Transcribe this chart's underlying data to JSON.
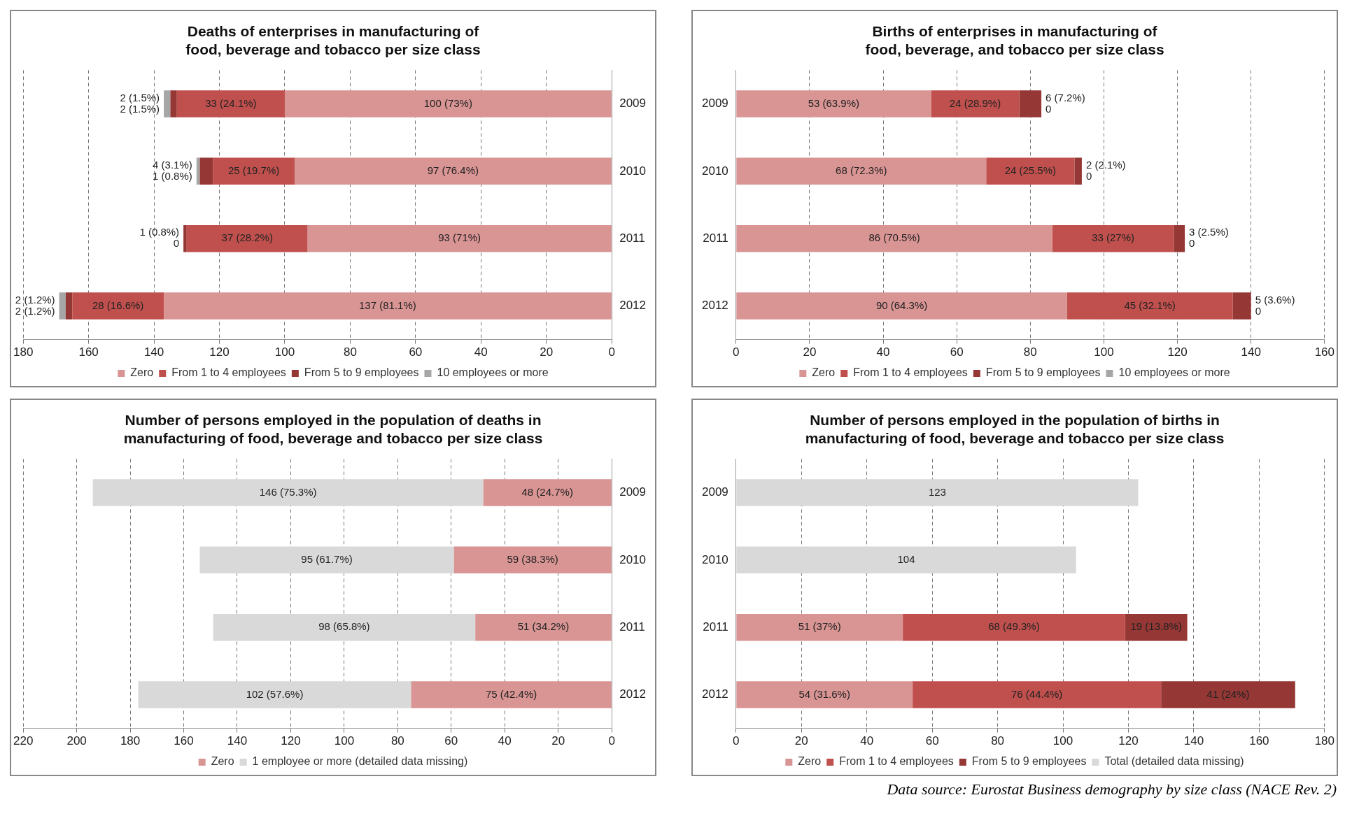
{
  "chart_data": [
    {
      "type": "bar",
      "orientation": "horizontal",
      "stacked": true,
      "title": "Deaths of enterprises in manufacturing of food, beverage and tobacco per size class",
      "categories": [
        "2009",
        "2010",
        "2011",
        "2012"
      ],
      "xlim": [
        180,
        0
      ],
      "xticks": [
        180,
        160,
        140,
        120,
        100,
        80,
        60,
        40,
        20,
        0
      ],
      "grid": "x",
      "legend": "bottom",
      "series": [
        {
          "name": "Zero",
          "color": "#d99594",
          "values": [
            100,
            97,
            93,
            137
          ],
          "value_labels": [
            "100 (73%)",
            "97 (76.4%)",
            "93 (71%)",
            "137 (81.1%)"
          ]
        },
        {
          "name": "From 1 to 4 employees",
          "color": "#c0504d",
          "values": [
            33,
            25,
            37,
            28
          ],
          "value_labels": [
            "33 (24.1%)",
            "25 (19.7%)",
            "37 (28.2%)",
            "28 (16.6%)"
          ]
        },
        {
          "name": "From 5 to 9 employees",
          "color": "#953735",
          "values": [
            2,
            4,
            1,
            2
          ],
          "value_labels": [
            "2 (1.5%)",
            "4 (3.1%)",
            "1 (0.8%)",
            "2 (1.2%)"
          ]
        },
        {
          "name": "10 employees or more",
          "color": "#a6a6a6",
          "values": [
            2,
            1,
            0,
            2
          ],
          "value_labels": [
            "2 (1.5%)",
            "1 (0.8%)",
            "0",
            "2 (1.2%)"
          ]
        }
      ]
    },
    {
      "type": "bar",
      "orientation": "horizontal",
      "stacked": true,
      "title": "Births of enterprises in manufacturing of food, beverage, and tobacco per size class",
      "categories": [
        "2009",
        "2010",
        "2011",
        "2012"
      ],
      "xlim": [
        0,
        160
      ],
      "xticks": [
        0,
        20,
        40,
        60,
        80,
        100,
        120,
        140,
        160
      ],
      "grid": "x",
      "legend": "bottom",
      "series": [
        {
          "name": "Zero",
          "color": "#d99594",
          "values": [
            53,
            68,
            86,
            90
          ],
          "value_labels": [
            "53 (63.9%)",
            "68 (72.3%)",
            "86 (70.5%)",
            "90 (64.3%)"
          ]
        },
        {
          "name": "From 1 to 4 employees",
          "color": "#c0504d",
          "values": [
            24,
            24,
            33,
            45
          ],
          "value_labels": [
            "24 (28.9%)",
            "24 (25.5%)",
            "33 (27%)",
            "45 (32.1%)"
          ]
        },
        {
          "name": "From 5 to 9 employees",
          "color": "#953735",
          "values": [
            6,
            2,
            3,
            5
          ],
          "value_labels": [
            "6 (7.2%)",
            "2 (2.1%)",
            "3 (2.5%)",
            "5 (3.6%)"
          ]
        },
        {
          "name": "10 employees or more",
          "color": "#a6a6a6",
          "values": [
            0,
            0,
            0,
            0
          ],
          "value_labels": [
            "0",
            "0",
            "0",
            "0"
          ]
        }
      ]
    },
    {
      "type": "bar",
      "orientation": "horizontal",
      "stacked": true,
      "title": "Number of persons employed in the population of deaths in manufacturing of food, beverage and tobacco per size class",
      "categories": [
        "2009",
        "2010",
        "2011",
        "2012"
      ],
      "xlim": [
        220,
        0
      ],
      "xticks": [
        220,
        200,
        180,
        160,
        140,
        120,
        100,
        80,
        60,
        40,
        20,
        0
      ],
      "grid": "x",
      "legend": "bottom",
      "series": [
        {
          "name": "Zero",
          "color": "#d99594",
          "values": [
            48,
            59,
            51,
            75
          ],
          "value_labels": [
            "48 (24.7%)",
            "59 (38.3%)",
            "51 (34.2%)",
            "75 (42.4%)"
          ]
        },
        {
          "name": "1 employee or more (detailed data missing)",
          "color": "#d9d9d9",
          "values": [
            146,
            95,
            98,
            102
          ],
          "value_labels": [
            "146 (75.3%)",
            "95 (61.7%)",
            "98 (65.8%)",
            "102 (57.6%)"
          ]
        }
      ]
    },
    {
      "type": "bar",
      "orientation": "horizontal",
      "stacked": true,
      "title": "Number of persons employed in the population of births in manufacturing of food, beverage and tobacco per size class",
      "categories": [
        "2009",
        "2010",
        "2011",
        "2012"
      ],
      "xlim": [
        0,
        180
      ],
      "xticks": [
        0,
        20,
        40,
        60,
        80,
        100,
        120,
        140,
        160,
        180
      ],
      "grid": "x",
      "legend": "bottom",
      "annotations": [
        "Data source: Eurostat Business demography by size class (NACE Rev. 2)"
      ],
      "series": [
        {
          "name": "Zero",
          "color": "#d99594",
          "values": [
            null,
            null,
            51,
            54
          ],
          "value_labels": [
            null,
            null,
            "51 (37%)",
            "54 (31.6%)"
          ]
        },
        {
          "name": "From 1 to 4 employees",
          "color": "#c0504d",
          "values": [
            null,
            null,
            68,
            76
          ],
          "value_labels": [
            null,
            null,
            "68 (49.3%)",
            "76 (44.4%)"
          ]
        },
        {
          "name": "From 5 to 9 employees",
          "color": "#953735",
          "values": [
            null,
            null,
            19,
            41
          ],
          "value_labels": [
            null,
            null,
            "19 (13.8%)",
            "41 (24%)"
          ]
        },
        {
          "name": "Total (detailed data missing)",
          "color": "#d9d9d9",
          "values": [
            123,
            104,
            null,
            null
          ],
          "value_labels": [
            "123",
            "104",
            null,
            null
          ]
        }
      ]
    }
  ]
}
